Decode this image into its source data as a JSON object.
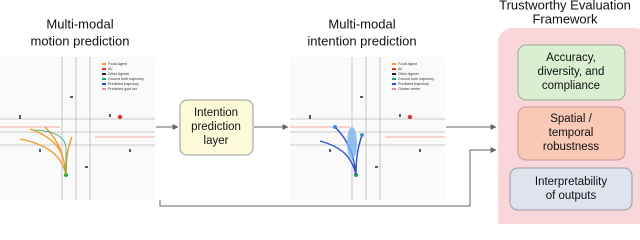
{
  "left": {
    "title": [
      "Multi-modal",
      "motion prediction"
    ],
    "legend": [
      "Focal Agent",
      "AV",
      "Other Agents",
      "Ground truth trajectory",
      "Predicted trajectory",
      "Predicted goal set"
    ]
  },
  "layer": {
    "label": [
      "Intention",
      "prediction",
      "layer"
    ]
  },
  "middle": {
    "title": [
      "Multi-modal",
      "intention prediction"
    ],
    "legend": [
      "Focal Agent",
      "AV",
      "Other Agents",
      "Ground truth trajectory",
      "Predicted trajectory",
      "Cluster center"
    ]
  },
  "framework": {
    "title": [
      "Trustworthy Evaluation",
      "Framework"
    ],
    "boxes": [
      {
        "label": [
          "Accuracy,",
          "diversity, and",
          "compliance"
        ]
      },
      {
        "label": [
          "Spatial /",
          "temporal",
          "robustness"
        ]
      },
      {
        "label": [
          "Interpretability",
          "of outputs"
        ]
      }
    ]
  }
}
